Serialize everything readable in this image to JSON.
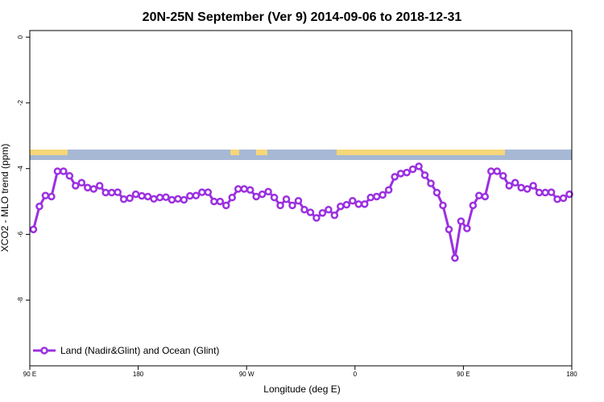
{
  "chart_data": {
    "type": "line",
    "title": "20N-25N September (Ver 9)   2014-09-06 to 2018-12-31",
    "xlabel": "Longitude (deg E)",
    "ylabel": "XCO2 - MLO trend (ppm)",
    "xlim": [
      90,
      540
    ],
    "ylim": [
      -10,
      0.2
    ],
    "x_ticks": [
      {
        "value": 90,
        "label": "90 E"
      },
      {
        "value": 180,
        "label": "180"
      },
      {
        "value": 270,
        "label": "90 W"
      },
      {
        "value": 360,
        "label": "0"
      },
      {
        "value": 450,
        "label": "90 E"
      },
      {
        "value": 540,
        "label": "180"
      }
    ],
    "y_ticks": [
      {
        "value": 0,
        "label": "0"
      },
      {
        "value": -2,
        "label": "-2"
      },
      {
        "value": -4,
        "label": "-4"
      },
      {
        "value": -6,
        "label": "-6"
      },
      {
        "value": -8,
        "label": "-8"
      }
    ],
    "grid": false,
    "legend_position": "bottom-left",
    "series": [
      {
        "name": "Land (Nadir&Glint) and Ocean (Glint)",
        "color": "#9b30e0",
        "x": [
          93,
          98,
          103,
          108,
          113,
          118,
          123,
          128,
          133,
          138,
          143,
          148,
          153,
          158,
          163,
          168,
          173,
          178,
          183,
          188,
          193,
          198,
          203,
          208,
          213,
          218,
          223,
          228,
          233,
          238,
          243,
          248,
          253,
          258,
          263,
          268,
          273,
          278,
          283,
          288,
          293,
          298,
          303,
          308,
          313,
          318,
          323,
          328,
          333,
          338,
          343,
          348,
          353,
          358,
          363,
          368,
          373,
          378,
          383,
          388,
          393,
          398,
          403,
          408,
          413,
          418,
          423,
          428,
          433,
          438,
          443,
          448,
          453,
          458,
          463,
          468,
          473,
          478,
          483,
          488,
          493,
          498,
          503,
          508,
          513,
          518,
          523,
          528,
          533,
          538
        ],
        "values": [
          -5.85,
          -5.15,
          -4.82,
          -4.85,
          -4.08,
          -4.08,
          -4.22,
          -4.52,
          -4.43,
          -4.58,
          -4.62,
          -4.52,
          -4.73,
          -4.73,
          -4.72,
          -4.93,
          -4.9,
          -4.78,
          -4.83,
          -4.85,
          -4.92,
          -4.88,
          -4.87,
          -4.95,
          -4.92,
          -4.95,
          -4.83,
          -4.82,
          -4.72,
          -4.72,
          -5.0,
          -5.0,
          -5.12,
          -4.88,
          -4.62,
          -4.62,
          -4.65,
          -4.85,
          -4.78,
          -4.7,
          -4.88,
          -5.12,
          -4.93,
          -5.12,
          -4.98,
          -5.25,
          -5.33,
          -5.5,
          -5.35,
          -5.25,
          -5.42,
          -5.15,
          -5.1,
          -4.98,
          -5.08,
          -5.08,
          -4.88,
          -4.85,
          -4.8,
          -4.65,
          -4.25,
          -4.15,
          -4.12,
          -4.02,
          -3.93,
          -4.2,
          -4.45,
          -4.73,
          -5.12,
          -5.85,
          -6.72,
          -5.6,
          -5.82,
          -5.12,
          -4.82,
          -4.85,
          -4.08,
          -4.08,
          -4.22,
          -4.52,
          -4.43,
          -4.58,
          -4.62,
          -4.52,
          -4.73,
          -4.73,
          -4.72,
          -4.93,
          -4.9,
          -4.78
        ]
      }
    ]
  }
}
